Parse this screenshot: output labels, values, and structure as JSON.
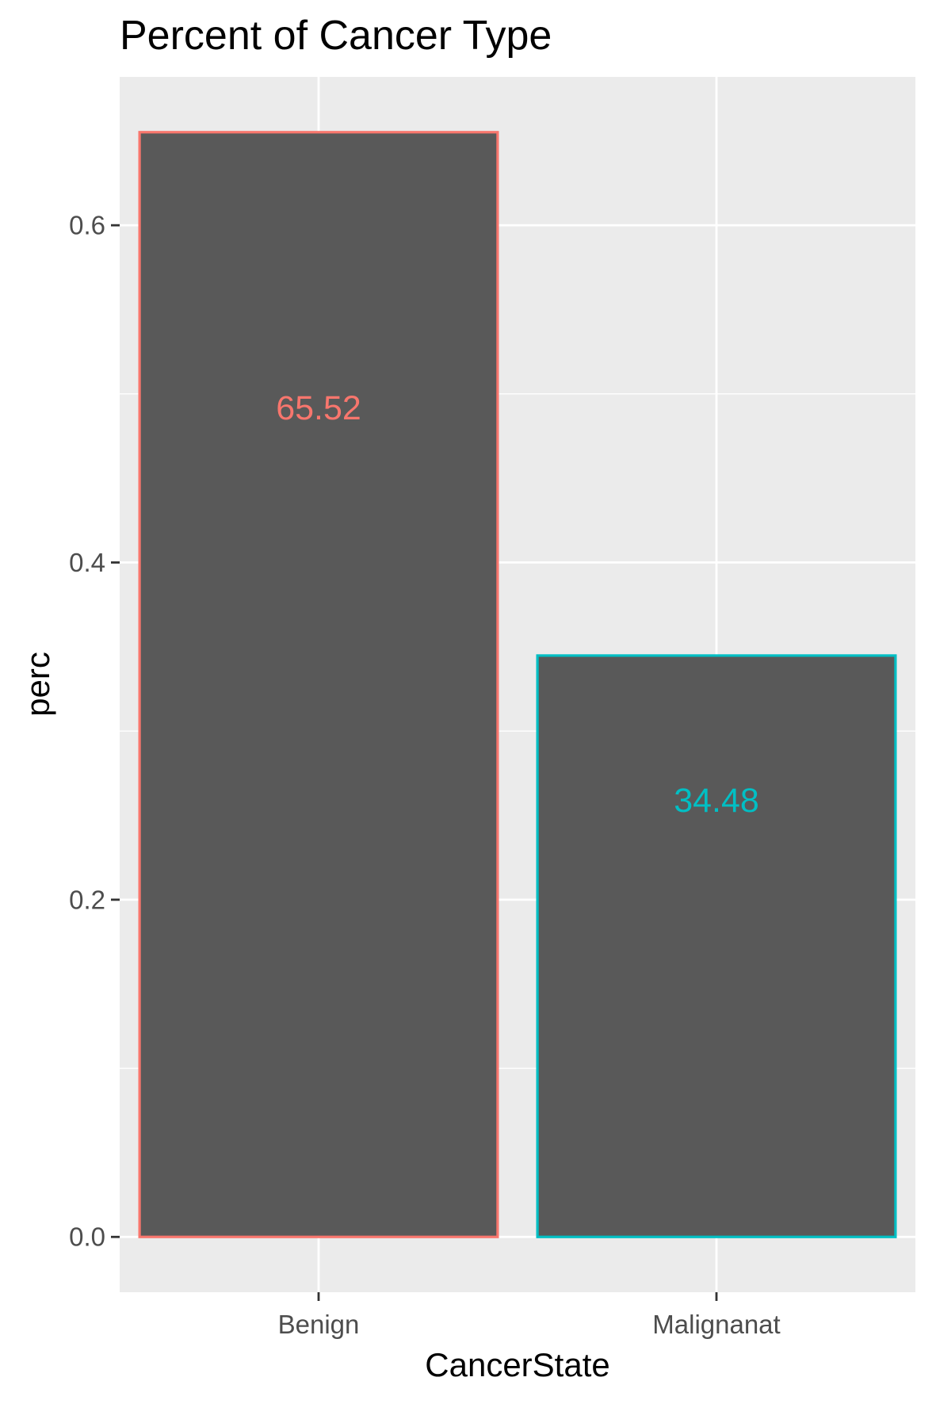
{
  "chart_data": {
    "type": "bar",
    "title": "Percent of Cancer Type",
    "xlabel": "CancerState",
    "ylabel": "perc",
    "categories": [
      "Benign",
      "Malignanat"
    ],
    "values": [
      0.6552,
      0.3448
    ],
    "data_labels": [
      "65.52",
      "34.48"
    ],
    "bar_fill": "#595959",
    "outline_colors": [
      "#F8766D",
      "#00BFC4"
    ],
    "panel_background": "#EBEBEB",
    "grid_color": "#FFFFFF",
    "ylim": [
      -0.0328,
      0.688
    ],
    "y_ticks": [
      0.0,
      0.2,
      0.4,
      0.6
    ],
    "y_tick_labels": [
      "0.0",
      "0.2",
      "0.4",
      "0.6"
    ],
    "grid": true,
    "legend": "none"
  }
}
